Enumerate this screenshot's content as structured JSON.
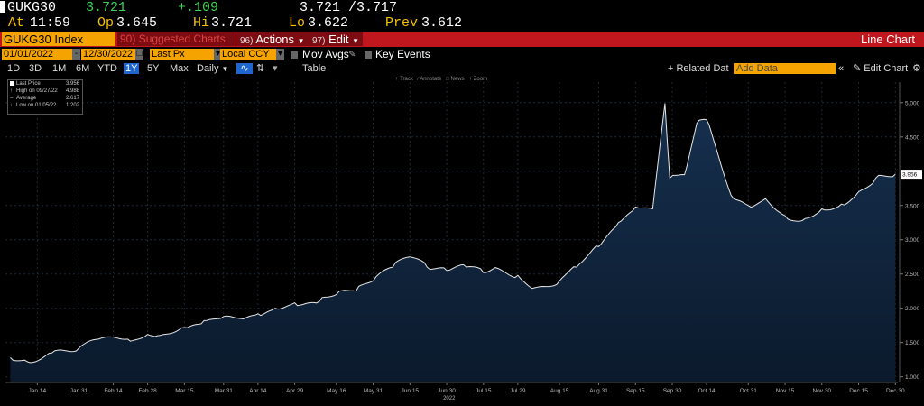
{
  "quote": {
    "ticker": "GUKG30",
    "last": "3.721",
    "change": "+.109",
    "bid_ask": "3.721 /3.717",
    "at_label": "At",
    "at_time": "11:59",
    "op_label": "Op",
    "open": "3.645",
    "hi_label": "Hi",
    "high": "3.721",
    "lo_label": "Lo",
    "low": "3.622",
    "prev_label": "Prev",
    "prev": "3.612"
  },
  "title_bar": {
    "security": "GUKG30 Index",
    "suggested_num": "90",
    "suggested_label": "Suggested Charts",
    "actions_num": "96)",
    "actions_label": "Actions",
    "edit_num": "97)",
    "edit_label": "Edit",
    "chart_title": "Line Chart"
  },
  "controls": {
    "start_date": "01/01/2022",
    "end_date": "12/30/2022",
    "field": "Last Px",
    "currency": "Local CCY",
    "mov_avgs": "Mov Avgs",
    "key_events": "Key Events"
  },
  "ranges": {
    "items": [
      "1D",
      "3D",
      "1M",
      "6M",
      "YTD",
      "1Y",
      "5Y",
      "Max"
    ],
    "selected": "1Y",
    "period": "Daily",
    "table": "Table",
    "related": "+ Related Dat",
    "add_data_placeholder": "Add Data",
    "edit_chart": "Edit Chart"
  },
  "chart_tools": {
    "track": "Track",
    "annotate": "Annotate",
    "news": "News",
    "zoom": "Zoom"
  },
  "legend": [
    {
      "label": "Last Price",
      "value": "3.956",
      "color": "#ffffff"
    },
    {
      "label": "High on 09/27/22",
      "value": "4.988",
      "color": "#000000"
    },
    {
      "label": "Average",
      "value": "2.617",
      "color": "#000000"
    },
    {
      "label": "Low on 01/05/22",
      "value": "1.202",
      "color": "#000000"
    }
  ],
  "chart_data": {
    "type": "area",
    "series": [
      {
        "name": "Last Price"
      }
    ],
    "x_ticks": [
      "Jan 14",
      "Jan 31",
      "Feb 14",
      "Feb 28",
      "Mar 15",
      "Mar 31",
      "Apr 14",
      "Apr 29",
      "May 16",
      "May 31",
      "Jun 15",
      "Jun 30",
      "Jul 15",
      "Jul 29",
      "Aug 15",
      "Aug 31",
      "Sep 15",
      "Sep 30",
      "Oct 14",
      "Oct 31",
      "Nov 15",
      "Nov 30",
      "Dec 15",
      "Dec 30"
    ],
    "x_year": "2022",
    "y_ticks": [
      "1.000",
      "1.500",
      "2.000",
      "2.500",
      "3.000",
      "3.500",
      "4.000",
      "4.500",
      "5.000"
    ],
    "ylim": [
      0.93,
      5.3
    ],
    "last_value_label": "3.956",
    "x": [
      "2022-01-03",
      "2022-01-10",
      "2022-01-20",
      "2022-01-31",
      "2022-02-08",
      "2022-02-14",
      "2022-02-21",
      "2022-02-28",
      "2022-03-04",
      "2022-03-15",
      "2022-03-23",
      "2022-03-31",
      "2022-04-07",
      "2022-04-14",
      "2022-04-21",
      "2022-04-29",
      "2022-05-09",
      "2022-05-16",
      "2022-05-24",
      "2022-05-31",
      "2022-06-08",
      "2022-06-15",
      "2022-06-22",
      "2022-06-30",
      "2022-07-08",
      "2022-07-15",
      "2022-07-21",
      "2022-07-29",
      "2022-08-05",
      "2022-08-15",
      "2022-08-22",
      "2022-08-31",
      "2022-09-08",
      "2022-09-15",
      "2022-09-22",
      "2022-09-27",
      "2022-09-29",
      "2022-10-05",
      "2022-10-10",
      "2022-10-14",
      "2022-10-19",
      "2022-10-24",
      "2022-10-31",
      "2022-11-07",
      "2022-11-15",
      "2022-11-22",
      "2022-11-30",
      "2022-12-08",
      "2022-12-15",
      "2022-12-22",
      "2022-12-30"
    ],
    "values": [
      1.28,
      1.22,
      1.35,
      1.42,
      1.55,
      1.58,
      1.52,
      1.62,
      1.6,
      1.72,
      1.82,
      1.88,
      1.85,
      1.92,
      2.0,
      2.08,
      2.1,
      2.2,
      2.25,
      2.4,
      2.6,
      2.75,
      2.6,
      2.55,
      2.6,
      2.52,
      2.58,
      2.48,
      2.3,
      2.4,
      2.6,
      2.9,
      3.25,
      3.48,
      3.45,
      4.988,
      3.9,
      3.95,
      4.7,
      4.75,
      4.2,
      3.65,
      3.5,
      3.6,
      3.35,
      3.28,
      3.45,
      3.52,
      3.7,
      3.9,
      3.956
    ]
  }
}
